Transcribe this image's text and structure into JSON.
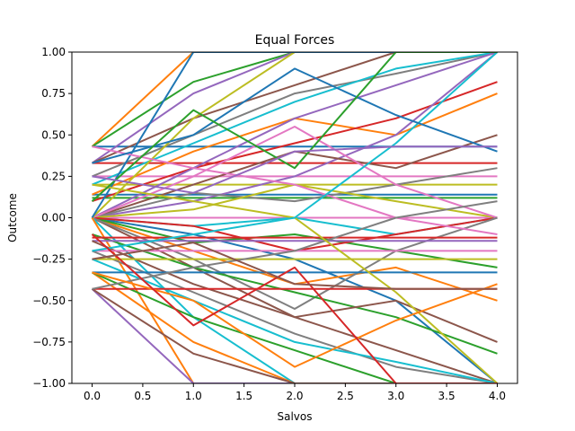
{
  "chart_data": {
    "type": "line",
    "title": "Equal Forces",
    "xlabel": "Salvos",
    "ylabel": "Outcome",
    "xlim": [
      -0.2,
      4.2
    ],
    "ylim": [
      -1.0,
      1.0
    ],
    "x": [
      0,
      1,
      2,
      3,
      4
    ],
    "xticks": [
      "0.0",
      "0.5",
      "1.0",
      "1.5",
      "2.0",
      "2.5",
      "3.0",
      "3.5",
      "4.0"
    ],
    "yticks": [
      "−1.00",
      "−0.75",
      "−0.50",
      "−0.25",
      "0.00",
      "0.25",
      "0.50",
      "0.75",
      "1.00"
    ],
    "grid": false,
    "legend": "none",
    "colors": [
      "#1f77b4",
      "#ff7f0e",
      "#2ca02c",
      "#d62728",
      "#9467bd",
      "#8c564b",
      "#e377c2",
      "#7f7f7f",
      "#bcbd22",
      "#17becf"
    ],
    "series": [
      {
        "values": [
          0.43,
          0.43,
          0.43,
          0.43,
          0.43
        ]
      },
      {
        "values": [
          0.43,
          1.0,
          1.0,
          1.0,
          1.0
        ]
      },
      {
        "values": [
          0.43,
          0.82,
          1.0,
          1.0,
          1.0
        ]
      },
      {
        "values": [
          0.33,
          0.33,
          0.33,
          0.33,
          0.33
        ]
      },
      {
        "values": [
          0.33,
          0.75,
          1.0,
          1.0,
          1.0
        ]
      },
      {
        "values": [
          0.33,
          0.6,
          0.8,
          1.0,
          1.0
        ]
      },
      {
        "values": [
          0.25,
          0.25,
          0.25,
          0.25,
          0.25
        ]
      },
      {
        "values": [
          0.25,
          0.5,
          0.75,
          0.87,
          1.0
        ]
      },
      {
        "values": [
          0.2,
          0.2,
          0.2,
          0.2,
          0.2
        ]
      },
      {
        "values": [
          0.2,
          0.45,
          0.7,
          0.9,
          1.0
        ]
      },
      {
        "values": [
          0.14,
          0.14,
          0.14,
          0.14,
          0.14
        ]
      },
      {
        "values": [
          0.14,
          0.4,
          0.6,
          0.5,
          0.75
        ]
      },
      {
        "values": [
          0.12,
          0.12,
          0.12,
          0.12,
          0.12
        ]
      },
      {
        "values": [
          0.1,
          0.3,
          0.45,
          0.6,
          0.82
        ]
      },
      {
        "values": [
          0.0,
          0.1,
          0.25,
          0.5,
          1.0
        ]
      },
      {
        "values": [
          0.0,
          0.2,
          0.4,
          0.3,
          0.5
        ]
      },
      {
        "values": [
          0.0,
          0.0,
          0.0,
          0.0,
          0.0
        ]
      },
      {
        "values": [
          0.0,
          0.15,
          0.1,
          0.2,
          0.3
        ]
      },
      {
        "values": [
          0.0,
          0.05,
          0.2,
          0.1,
          0.0
        ]
      },
      {
        "values": [
          0.0,
          -0.05,
          0.0,
          -0.1,
          0.0
        ]
      },
      {
        "values": [
          0.0,
          -0.1,
          -0.25,
          -0.5,
          -1.0
        ]
      },
      {
        "values": [
          0.0,
          -0.2,
          -0.4,
          -0.3,
          -0.5
        ]
      },
      {
        "values": [
          0.0,
          -0.15,
          -0.1,
          -0.2,
          -0.3
        ]
      },
      {
        "values": [
          0.0,
          -0.05,
          -0.2,
          -0.1,
          0.0
        ]
      },
      {
        "values": [
          0.0,
          0.3,
          0.6,
          0.8,
          1.0
        ]
      },
      {
        "values": [
          0.0,
          -0.3,
          -0.6,
          -0.8,
          -1.0
        ]
      },
      {
        "values": [
          0.0,
          0.25,
          0.55,
          0.2,
          0.0
        ]
      },
      {
        "values": [
          0.0,
          -0.25,
          -0.55,
          -0.2,
          0.0
        ]
      },
      {
        "values": [
          0.0,
          0.6,
          1.0,
          1.0,
          1.0
        ]
      },
      {
        "values": [
          0.0,
          -0.6,
          -1.0,
          -1.0,
          -1.0
        ]
      },
      {
        "values": [
          0.0,
          1.0,
          1.0,
          1.0,
          1.0
        ]
      },
      {
        "values": [
          0.0,
          -1.0,
          -1.0,
          -1.0,
          -1.0
        ]
      },
      {
        "values": [
          -0.1,
          -0.3,
          -0.45,
          -0.6,
          -0.82
        ]
      },
      {
        "values": [
          -0.12,
          -0.12,
          -0.12,
          -0.12,
          -0.12
        ]
      },
      {
        "values": [
          -0.14,
          -0.14,
          -0.14,
          -0.14,
          -0.14
        ]
      },
      {
        "values": [
          -0.14,
          -0.4,
          -0.6,
          -0.5,
          -0.75
        ]
      },
      {
        "values": [
          -0.2,
          -0.2,
          -0.2,
          -0.2,
          -0.2
        ]
      },
      {
        "values": [
          -0.2,
          -0.45,
          -0.7,
          -0.9,
          -1.0
        ]
      },
      {
        "values": [
          -0.25,
          -0.25,
          -0.25,
          -0.25,
          -0.25
        ]
      },
      {
        "values": [
          -0.25,
          -0.5,
          -0.75,
          -0.87,
          -1.0
        ]
      },
      {
        "values": [
          -0.33,
          -0.33,
          -0.33,
          -0.33,
          -0.33
        ]
      },
      {
        "values": [
          -0.33,
          -0.75,
          -1.0,
          -1.0,
          -1.0
        ]
      },
      {
        "values": [
          -0.33,
          -0.6,
          -0.8,
          -1.0,
          -1.0
        ]
      },
      {
        "values": [
          -0.43,
          -0.43,
          -0.43,
          -0.43,
          -0.43
        ]
      },
      {
        "values": [
          -0.43,
          -1.0,
          -1.0,
          -1.0,
          -1.0
        ]
      },
      {
        "values": [
          -0.43,
          -0.82,
          -1.0,
          -1.0,
          -1.0
        ]
      },
      {
        "values": [
          0.43,
          0.3,
          0.2,
          0.0,
          -0.1
        ]
      },
      {
        "values": [
          -0.43,
          -0.3,
          -0.2,
          0.0,
          0.1
        ]
      },
      {
        "values": [
          0.2,
          0.1,
          0.0,
          -0.45,
          -1.0
        ]
      },
      {
        "values": [
          -0.2,
          -0.1,
          0.0,
          0.45,
          1.0
        ]
      },
      {
        "values": [
          0.33,
          0.5,
          0.9,
          0.62,
          0.4
        ]
      },
      {
        "values": [
          -0.33,
          -0.5,
          -0.9,
          -0.62,
          -0.4
        ]
      },
      {
        "values": [
          0.1,
          0.65,
          0.3,
          1.0,
          1.0
        ]
      },
      {
        "values": [
          -0.1,
          -0.65,
          -0.3,
          -1.0,
          -1.0
        ]
      },
      {
        "values": [
          0.25,
          0.15,
          0.4,
          0.43,
          0.43
        ]
      },
      {
        "values": [
          -0.25,
          -0.15,
          -0.4,
          -0.43,
          -0.43
        ]
      }
    ]
  }
}
